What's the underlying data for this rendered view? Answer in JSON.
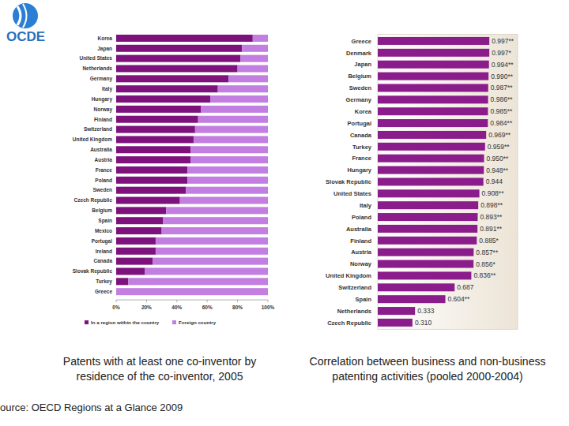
{
  "logo": {
    "text": "OCDE"
  },
  "source": "ource: OECD Regions at a Glance 2009",
  "chart_data": [
    {
      "type": "bar",
      "title": "Patents with at least one co-inventor by residence of the co-inventor, 2005",
      "orientation": "horizontal",
      "stacked": true,
      "categories": [
        "Korea",
        "Japan",
        "United States",
        "Netherlands",
        "Germany",
        "Italy",
        "Hungary",
        "Norway",
        "Finland",
        "Switzerland",
        "United Kingdom",
        "Australia",
        "Austria",
        "France",
        "Poland",
        "Sweden",
        "Czech Republic",
        "Belgium",
        "Spain",
        "Mexico",
        "Portugal",
        "Ireland",
        "Canada",
        "Slovak Republic",
        "Turkey",
        "Greece"
      ],
      "series": [
        {
          "name": "In a region within the country",
          "color": "#7d127d",
          "values": [
            90,
            83,
            82,
            80,
            74,
            67,
            62,
            56,
            54,
            52,
            51,
            49,
            49,
            47,
            47,
            46,
            42,
            33,
            31,
            30,
            26,
            26,
            24,
            19,
            8,
            0
          ]
        },
        {
          "name": "Foreign country",
          "color": "#c27ee0",
          "values": [
            10,
            17,
            18,
            20,
            26,
            33,
            38,
            44,
            46,
            48,
            49,
            51,
            51,
            53,
            53,
            54,
            58,
            67,
            69,
            70,
            74,
            74,
            76,
            81,
            92,
            100
          ]
        }
      ],
      "xlim": [
        0,
        100
      ],
      "xticks": [
        {
          "value": 0,
          "label": "0%"
        },
        {
          "value": 20,
          "label": "20%"
        },
        {
          "value": 40,
          "label": "40%"
        },
        {
          "value": 60,
          "label": "60%"
        },
        {
          "value": 80,
          "label": "80%"
        },
        {
          "value": 100,
          "label": "100%"
        }
      ],
      "legend": "bottom",
      "grid": false
    },
    {
      "type": "bar",
      "title": "Correlation between business and non-business patenting activities (pooled 2000-2004)",
      "orientation": "horizontal",
      "categories": [
        "Greece",
        "Denmark",
        "Japan",
        "Belgium",
        "Sweden",
        "Germany",
        "Korea",
        "Portugal",
        "Canada",
        "Turkey",
        "France",
        "Hungary",
        "Slovak Republic",
        "United States",
        "Italy",
        "Poland",
        "Australia",
        "Finland",
        "Austria",
        "Norway",
        "United Kingdom",
        "Switzerland",
        "Spain",
        "Netherlands",
        "Czech Republic"
      ],
      "values": [
        0.997,
        0.997,
        0.994,
        0.99,
        0.987,
        0.986,
        0.985,
        0.984,
        0.969,
        0.959,
        0.95,
        0.948,
        0.944,
        0.908,
        0.898,
        0.893,
        0.891,
        0.885,
        0.857,
        0.856,
        0.836,
        0.687,
        0.604,
        0.333,
        0.31
      ],
      "value_labels": [
        "0.997**",
        "0.997*",
        "0.994**",
        "0.990**",
        "0.987**",
        "0.986**",
        "0.985**",
        "0.984**",
        "0.969**",
        "0.959**",
        "0.950**",
        "0.948**",
        "0.944",
        "0.908**",
        "0.898**",
        "0.893**",
        "0.891**",
        "0.885*",
        "0.857**",
        "0.856*",
        "0.836**",
        "0.687",
        "0.604**",
        "0.333",
        "0.310"
      ],
      "color": "#8b1c8b",
      "xlim": [
        0,
        1.25
      ],
      "data_labels": true,
      "tick_labels": "y",
      "grid": false
    }
  ]
}
